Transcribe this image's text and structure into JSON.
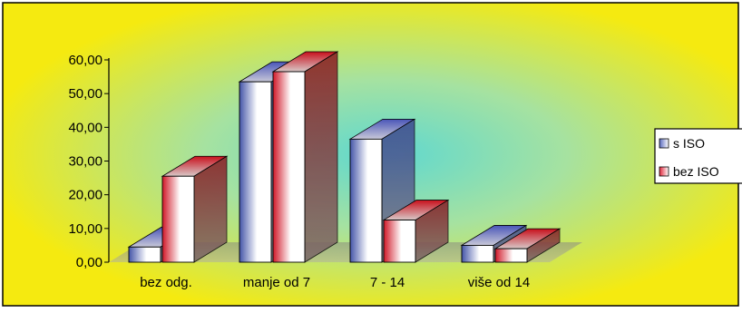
{
  "chart_data": {
    "type": "bar",
    "style": "3d-clustered-column",
    "categories": [
      "bez odg.",
      "manje od 7",
      "7 - 14",
      "više od 14"
    ],
    "series": [
      {
        "name": "s ISO",
        "values": [
          4.5,
          53.5,
          36.5,
          5.0
        ],
        "color": "#5b6cc0"
      },
      {
        "name": "bez ISO",
        "values": [
          25.5,
          56.5,
          12.5,
          4.0
        ],
        "color": "#e0283c"
      }
    ],
    "yticks": [
      "0,00",
      "10,00",
      "20,00",
      "30,00",
      "40,00",
      "50,00",
      "60,00"
    ],
    "ylim": [
      0,
      60
    ],
    "legend_position": "right",
    "background": "#f5ea10",
    "glow": "#5fd8d0"
  }
}
